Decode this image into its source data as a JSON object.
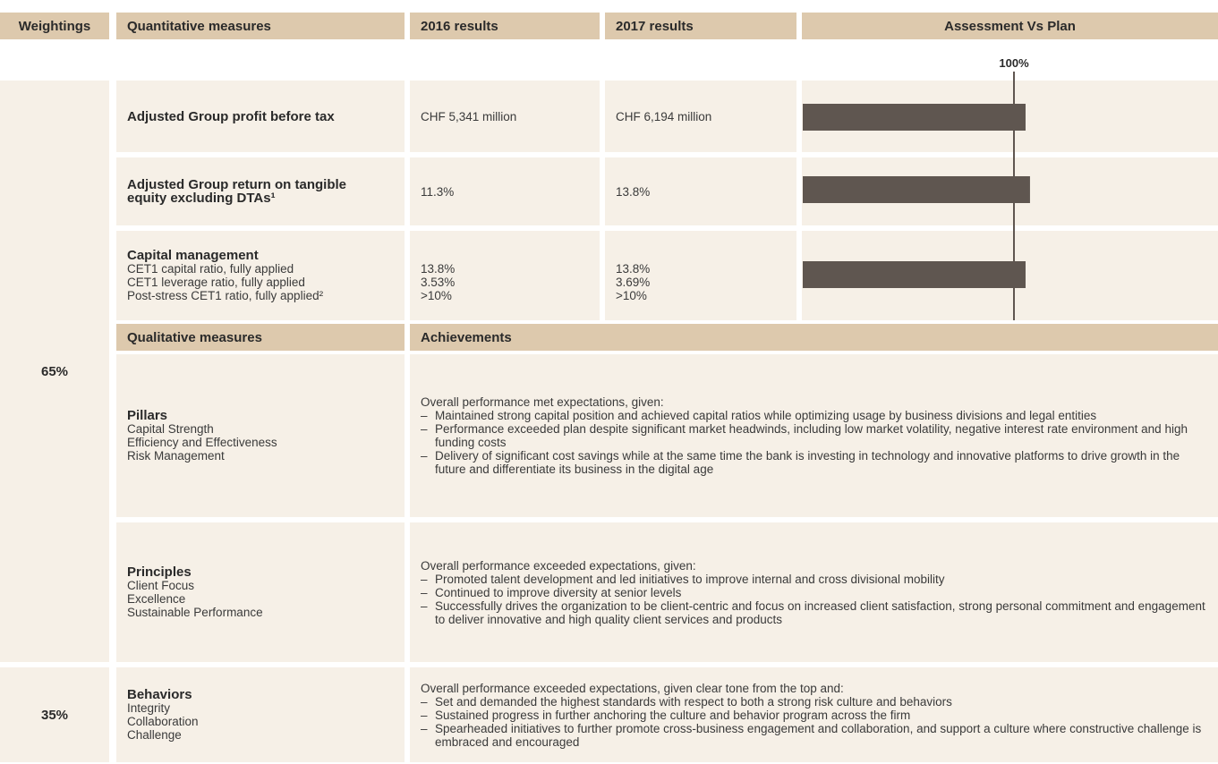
{
  "header": [
    "Weightings",
    "Quantitative measures",
    "2016 results",
    "2017 results",
    "Assessment Vs Plan"
  ],
  "weightings": [
    "65%",
    "35%"
  ],
  "quantitative": [
    {
      "measure": "Adjusted Group profit before tax",
      "sub": [],
      "r2016": [
        "CHF 5,341 million"
      ],
      "r2017": [
        "CHF 6,194 million"
      ]
    },
    {
      "measure": "Adjusted Group return on tangible equity excluding DTAs¹",
      "sub": [],
      "r2016": [
        "11.3%"
      ],
      "r2017": [
        "13.8%"
      ]
    },
    {
      "measure": "Capital management",
      "sub": [
        "CET1 capital ratio, fully applied",
        "CET1 leverage ratio, fully applied",
        "Post-stress CET1 ratio, fully applied²"
      ],
      "r2016": [
        "13.8%",
        "3.53%",
        ">10%"
      ],
      "r2017": [
        "13.8%",
        "3.69%",
        ">10%"
      ]
    }
  ],
  "qualitative_header": [
    "Qualitative measures",
    "Achievements"
  ],
  "qualitative": [
    {
      "measure": "Pillars",
      "items": [
        "Capital Strength",
        "Efficiency and Effectiveness",
        "Risk Management"
      ],
      "intro": "Overall performance met expectations, given:",
      "bullets": [
        "Maintained strong capital position and achieved capital ratios while optimizing usage by business divisions and legal entities",
        "Performance exceeded plan despite significant market headwinds, including low market volatility, negative interest rate environment and high funding costs",
        "Delivery of significant cost savings while at the same time the bank is investing in technology and innovative platforms to drive growth in the future and differentiate its business in the digital age"
      ]
    },
    {
      "measure": "Principles",
      "items": [
        "Client Focus",
        "Excellence",
        "Sustainable Performance"
      ],
      "intro": "Overall performance exceeded expectations, given:",
      "bullets": [
        "Promoted talent development and led initiatives to improve internal and cross divisional mobility",
        "Continued to improve diversity at senior levels",
        "Successfully drives the organization to be client-centric and focus on increased client satisfaction, strong personal commitment and engagement to deliver innovative and high quality client services and products"
      ]
    },
    {
      "measure": "Behaviors",
      "items": [
        "Integrity",
        "Collaboration",
        "Challenge"
      ],
      "intro": "Overall performance exceeded expectations, given clear tone from the top and:",
      "bullets": [
        "Set and demanded the highest standards with respect to both a strong risk culture and behaviors",
        "Sustained progress in further anchoring the culture and behavior program across the firm",
        "Spearheaded initiatives to further promote cross-business engagement and collaboration, and support a culture where constructive challenge is embraced and encouraged"
      ]
    }
  ],
  "chart_data": {
    "type": "bar",
    "xlim": [
      0,
      200
    ],
    "marker": {
      "value": 100,
      "label": "100%"
    },
    "values": [
      105.5,
      107.6,
      105.5
    ],
    "color": "#5f5650"
  }
}
